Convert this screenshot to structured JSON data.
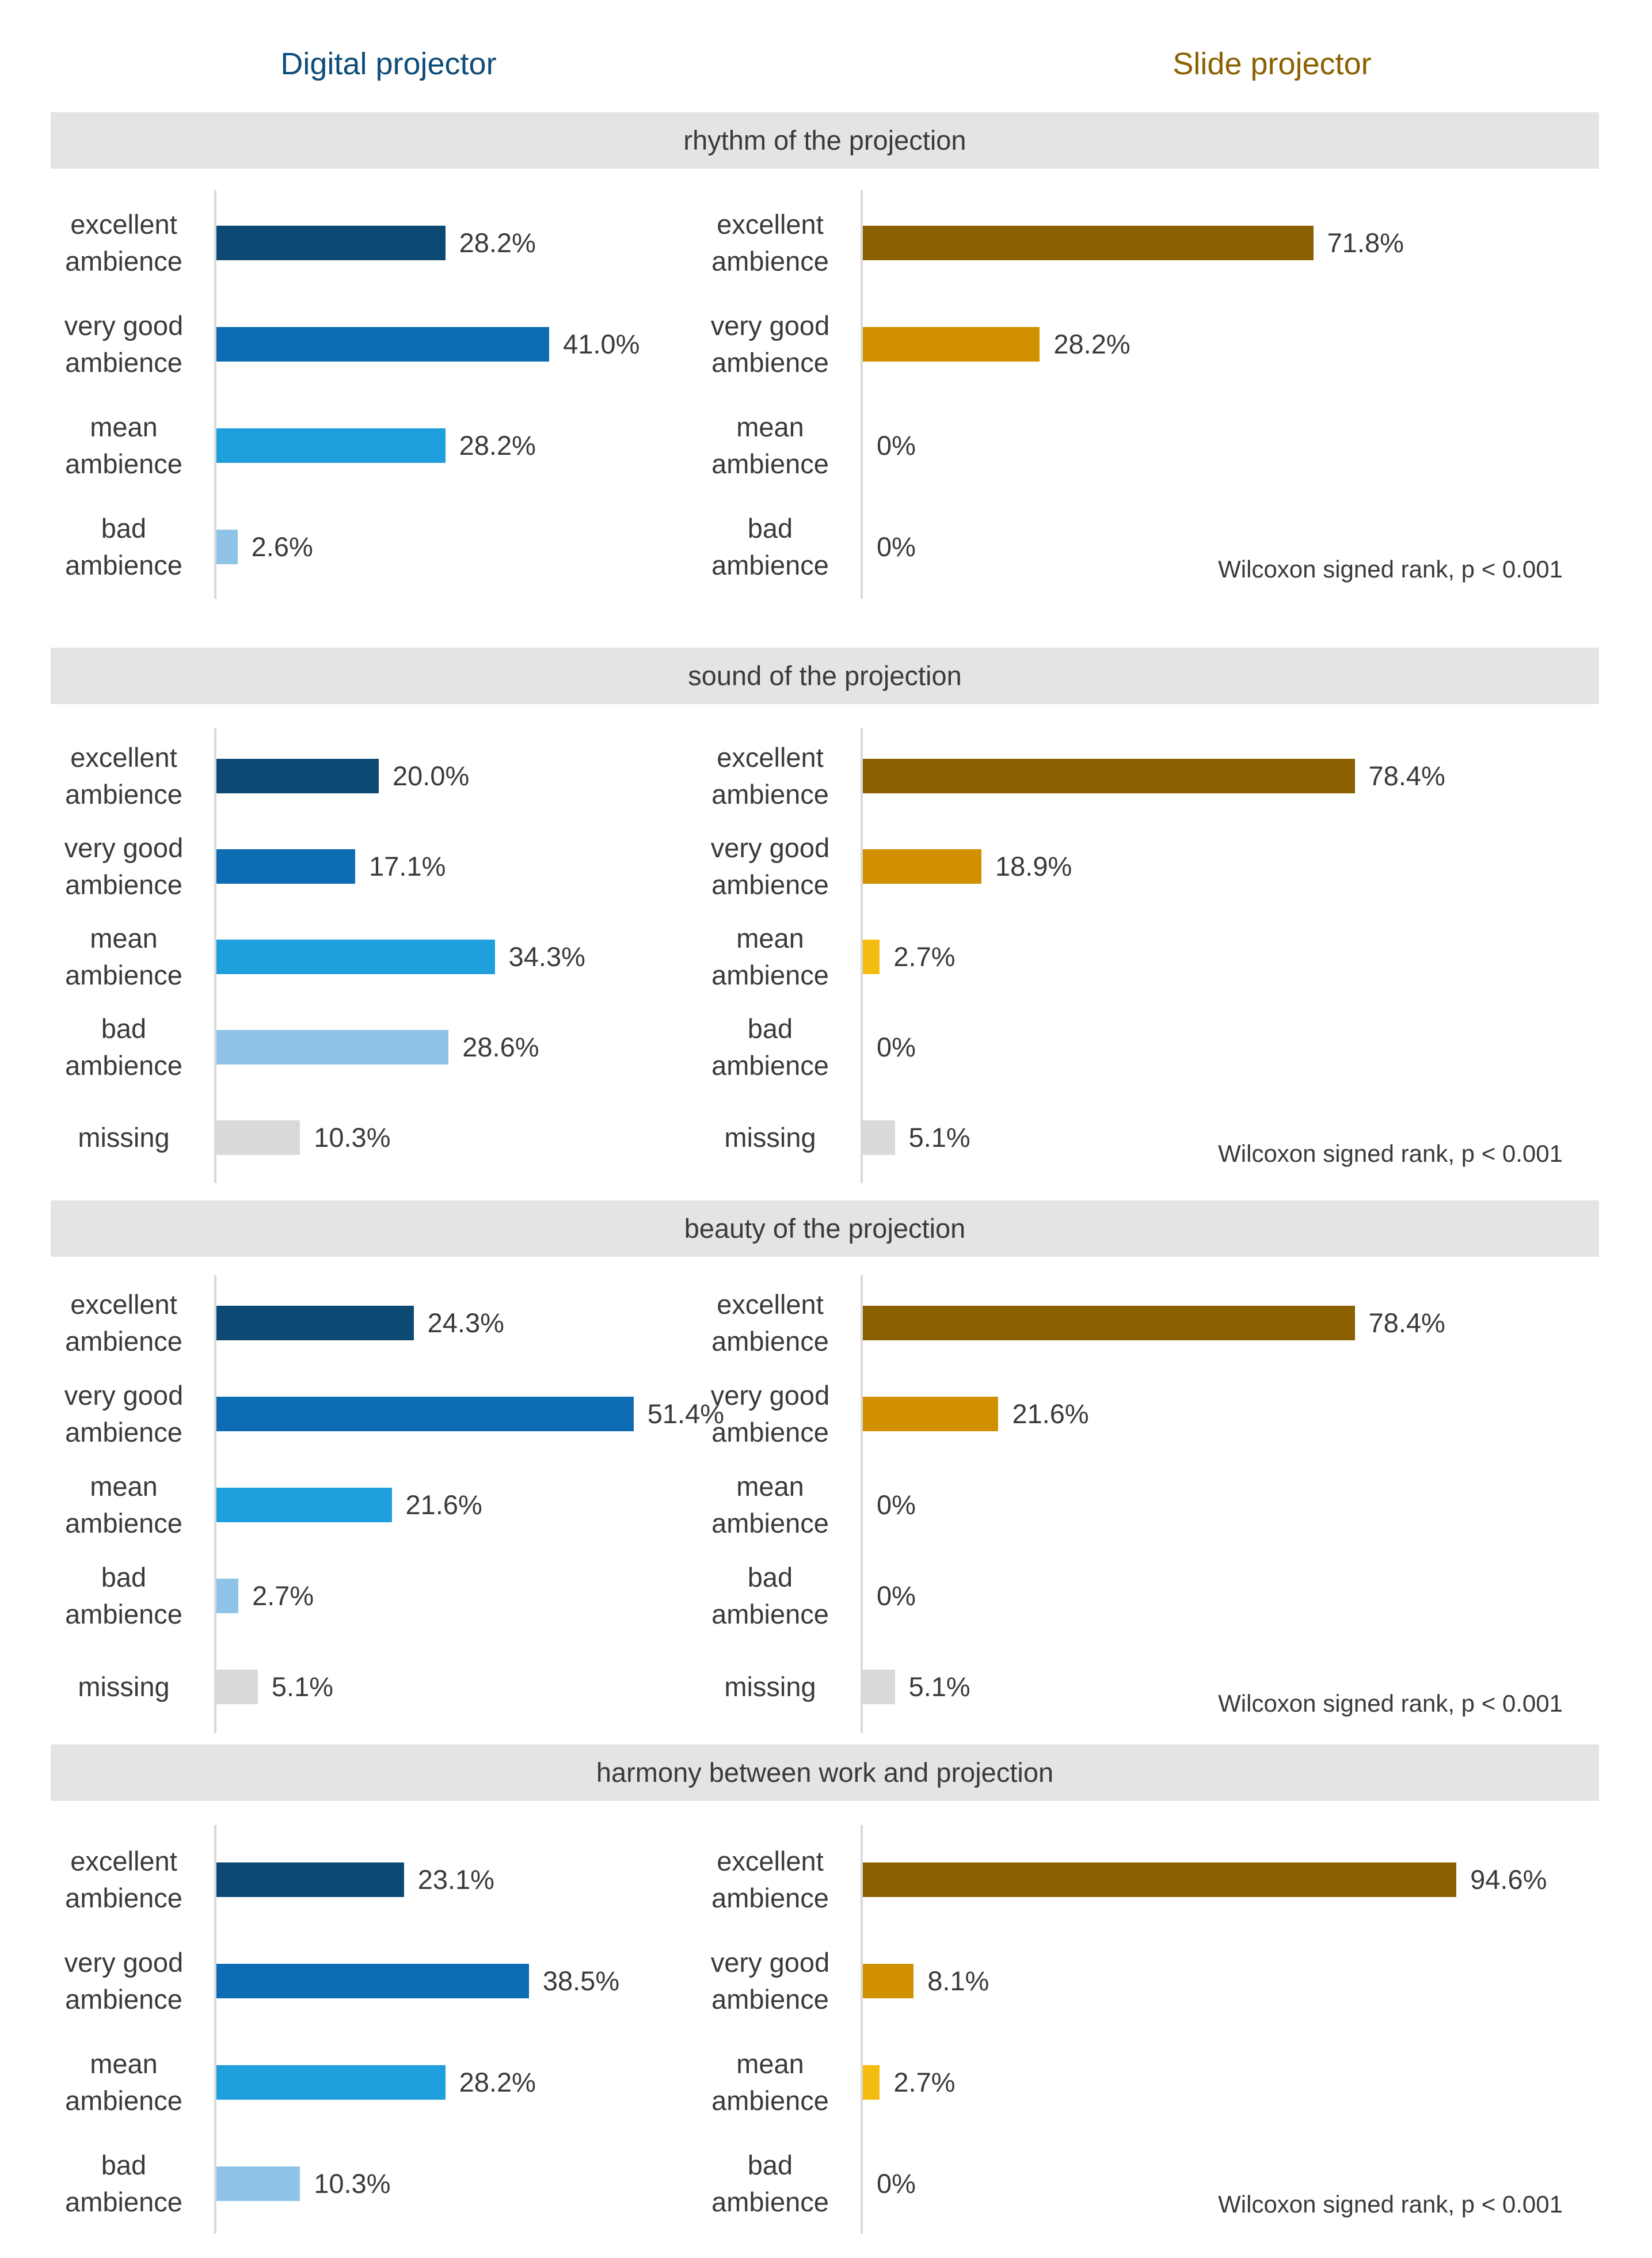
{
  "headers": {
    "left": "Digital projector",
    "right": "Slide projector"
  },
  "colors": {
    "left_title": "#0e4c7a",
    "right_title": "#8b6000",
    "digital": [
      "#0d4a73",
      "#0d6cb2",
      "#1f9fdc",
      "#8fc4e8"
    ],
    "slide": [
      "#8b6000",
      "#d09000",
      "#f5bc10",
      "#f6d070"
    ],
    "missing": "#d9d9d9"
  },
  "chart_data": [
    {
      "type": "bar",
      "title": "rhythm of the projection",
      "categories": [
        "excellent\nambience",
        "very good\nambience",
        "mean\nambience",
        "bad\nambience"
      ],
      "series": [
        {
          "name": "Digital projector",
          "values": [
            28.2,
            41.0,
            28.2,
            2.6
          ],
          "labels": [
            "28.2%",
            "41.0%",
            "28.2%",
            "2.6%"
          ]
        },
        {
          "name": "Slide projector",
          "values": [
            71.8,
            28.2,
            0,
            0
          ],
          "labels": [
            "71.8%",
            "28.2%",
            "0%",
            "0%"
          ]
        }
      ],
      "stat": "Wilcoxon signed rank, p < 0.001"
    },
    {
      "type": "bar",
      "title": "sound of the projection",
      "categories": [
        "excellent\nambience",
        "very good\nambience",
        "mean\nambience",
        "bad\nambience",
        "missing"
      ],
      "series": [
        {
          "name": "Digital projector",
          "values": [
            20.0,
            17.1,
            34.3,
            28.6,
            10.3
          ],
          "labels": [
            "20.0%",
            "17.1%",
            "34.3%",
            "28.6%",
            "10.3%"
          ]
        },
        {
          "name": "Slide projector",
          "values": [
            78.4,
            18.9,
            2.7,
            0,
            5.1
          ],
          "labels": [
            "78.4%",
            "18.9%",
            "2.7%",
            "0%",
            "5.1%"
          ]
        }
      ],
      "stat": "Wilcoxon signed rank, p < 0.001"
    },
    {
      "type": "bar",
      "title": "beauty of the projection",
      "categories": [
        "excellent\nambience",
        "very good\nambience",
        "mean\nambience",
        "bad\nambience",
        "missing"
      ],
      "series": [
        {
          "name": "Digital projector",
          "values": [
            24.3,
            51.4,
            21.6,
            2.7,
            5.1
          ],
          "labels": [
            "24.3%",
            "51.4%",
            "21.6%",
            "2.7%",
            "5.1%"
          ]
        },
        {
          "name": "Slide projector",
          "values": [
            78.4,
            21.6,
            0,
            0,
            5.1
          ],
          "labels": [
            "78.4%",
            "21.6%",
            "0%",
            "0%",
            "5.1%"
          ]
        }
      ],
      "stat": "Wilcoxon signed rank, p < 0.001"
    },
    {
      "type": "bar",
      "title": "harmony between work and projection",
      "categories": [
        "excellent\nambience",
        "very good\nambience",
        "mean\nambience",
        "bad\nambience"
      ],
      "series": [
        {
          "name": "Digital projector",
          "values": [
            23.1,
            38.5,
            28.2,
            10.3
          ],
          "labels": [
            "23.1%",
            "38.5%",
            "28.2%",
            "10.3%"
          ]
        },
        {
          "name": "Slide projector",
          "values": [
            94.6,
            8.1,
            2.7,
            0
          ],
          "labels": [
            "94.6%",
            "8.1%",
            "2.7%",
            "0%"
          ]
        }
      ],
      "stat": "Wilcoxon signed rank, p < 0.001"
    }
  ]
}
